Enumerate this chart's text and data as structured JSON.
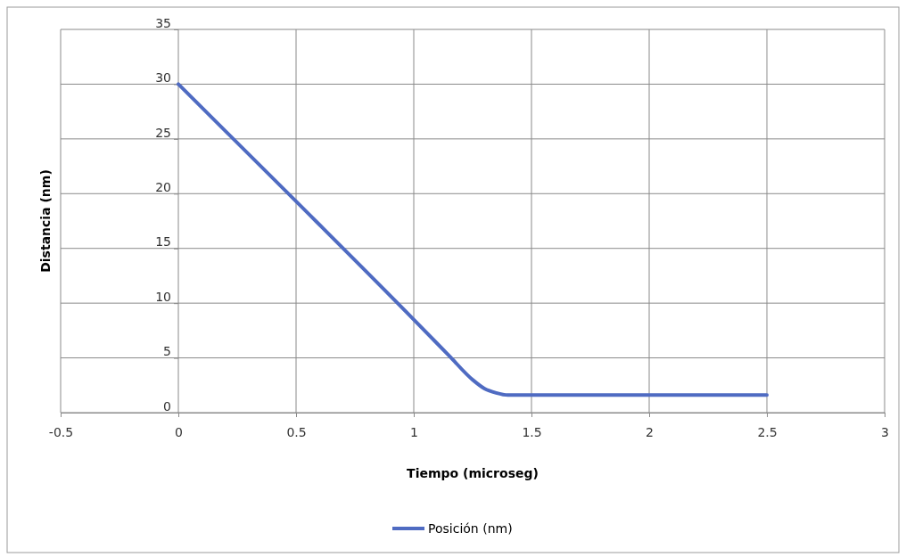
{
  "chart_data": {
    "type": "line",
    "xlabel": "Tiempo (microseg)",
    "ylabel": "Distancia  (nm)",
    "x": [
      0,
      0.5,
      1,
      1.15,
      1.25,
      1.3,
      1.35,
      1.4,
      1.5,
      2,
      2.5
    ],
    "series": [
      {
        "name": "Posición (nm)",
        "color": "#4f6bc2",
        "values": [
          30,
          19.3,
          8.5,
          5.2,
          3,
          2.2,
          1.8,
          1.6,
          1.6,
          1.6,
          1.6
        ]
      }
    ],
    "xlim": [
      -0.5,
      3
    ],
    "xticks": [
      -0.5,
      0,
      0.5,
      1,
      1.5,
      2,
      2.5,
      3
    ],
    "ylim": [
      0,
      35
    ],
    "yticks": [
      0,
      5,
      10,
      15,
      20,
      25,
      30,
      35
    ],
    "grid": true,
    "legend": "bottom",
    "marker": "none",
    "line_style": "solid"
  }
}
